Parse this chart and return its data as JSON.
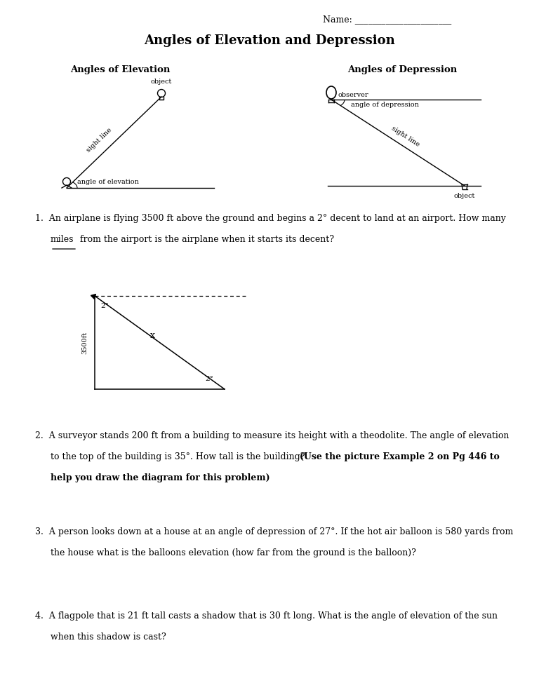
{
  "bg_color": "#ffffff",
  "text_color": "#1a1a1a",
  "name_label": "Name: ______________________",
  "title": "Angles of Elevation and Depression",
  "section_left": "Angles of Elevation",
  "section_right": "Angles of Depression",
  "q1_a": "1.  An airplane is flying 3500 ft above the ground and begins a 2° decent to land at an airport. How many",
  "q1_b": "miles from the airport is the airplane when it starts its decent?",
  "q2_a": "2.  A surveyor stands 200 ft from a building to measure its height with a theodolite. The angle of elevation",
  "q2_b": "to the top of the building is 35°. How tall is the building? ",
  "q2_b2": "(Use the picture Example 2 on Pg 446 to",
  "q2_c": "help you draw the diagram for this problem)",
  "q3_a": "3.  A person looks down at a house at an angle of depression of 27°. If the hot air balloon is 580 yards from",
  "q3_b": "the house what is the balloons elevation (how far from the ground is the balloon)?",
  "q4_a": "4.  A flagpole that is 21 ft tall casts a shadow that is 30 ft long. What is the angle of elevation of the sun",
  "q4_b": "when this shadow is cast?"
}
